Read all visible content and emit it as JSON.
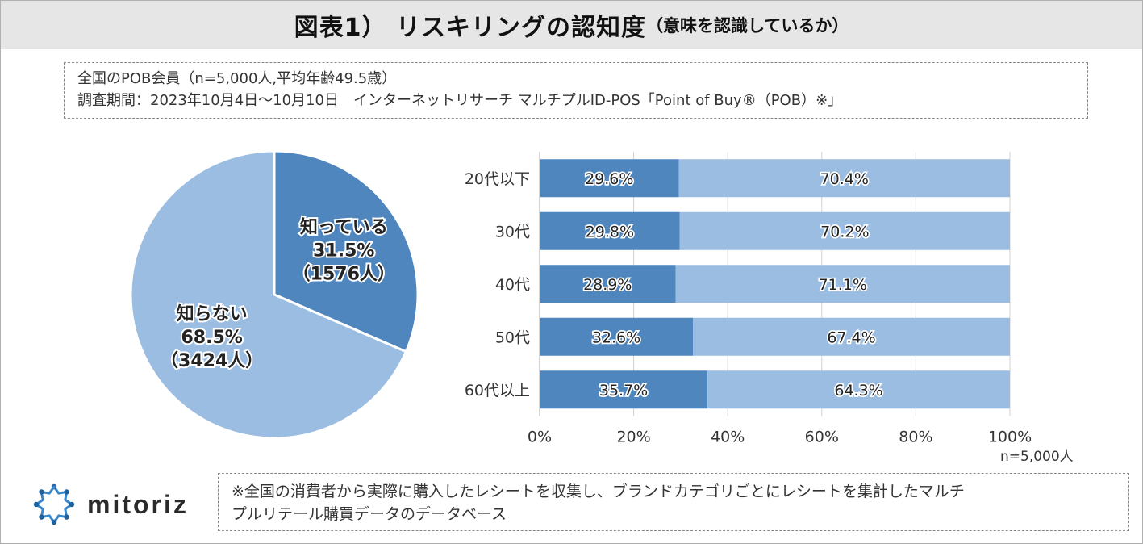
{
  "header": {
    "title_main": "図表1） リスキリングの認知度",
    "title_sub": "（意味を認識しているか）"
  },
  "info": {
    "line1": "全国のPOB会員（n=5,000人,平均年齢49.5歳）",
    "line2": "調査期間：2023年10月4日～10月10日　インターネットリサーチ マルチプルID-POS「Point of Buy®（POB）※」"
  },
  "note": {
    "line1": "※全国の消費者から実際に購入したレシートを収集し、ブランドカテゴリごとにレシートを集計したマルチ",
    "line2": "プルリテール購買データのデータベース"
  },
  "sample_note": "n=5,000人",
  "logo": {
    "text": "mitoriz",
    "icon": "sparkle-ring-icon"
  },
  "colors": {
    "dark": "#4f86bd",
    "light": "#9bbde2",
    "title_bg": "#e6e6e6",
    "grid": "#d0d0d0"
  },
  "chart_data": [
    {
      "type": "pie",
      "title": "",
      "slices": [
        {
          "name": "知っている",
          "percent_label": "31.5%",
          "count_label": "（1576人）",
          "value": 31.5,
          "color": "#4f86bd"
        },
        {
          "name": "知らない",
          "percent_label": "68.5%",
          "count_label": "（3424人）",
          "value": 68.5,
          "color": "#9bbde2"
        }
      ]
    },
    {
      "type": "bar",
      "orientation": "horizontal",
      "stacked": true,
      "categories": [
        "20代以下",
        "30代",
        "40代",
        "50代",
        "60代以上"
      ],
      "series": [
        {
          "name": "知っている",
          "values": [
            29.6,
            29.8,
            28.9,
            32.6,
            35.7
          ],
          "labels": [
            "29.6%",
            "29.8%",
            "28.9%",
            "32.6%",
            "35.7%"
          ],
          "color": "#4f86bd"
        },
        {
          "name": "知らない",
          "values": [
            70.4,
            70.2,
            71.1,
            67.4,
            64.3
          ],
          "labels": [
            "70.4%",
            "70.2%",
            "71.1%",
            "67.4%",
            "64.3%"
          ],
          "color": "#9bbde2"
        }
      ],
      "xlim": [
        0,
        100
      ],
      "xticks": [
        "0%",
        "20%",
        "40%",
        "60%",
        "80%",
        "100%"
      ],
      "grid": true
    }
  ]
}
